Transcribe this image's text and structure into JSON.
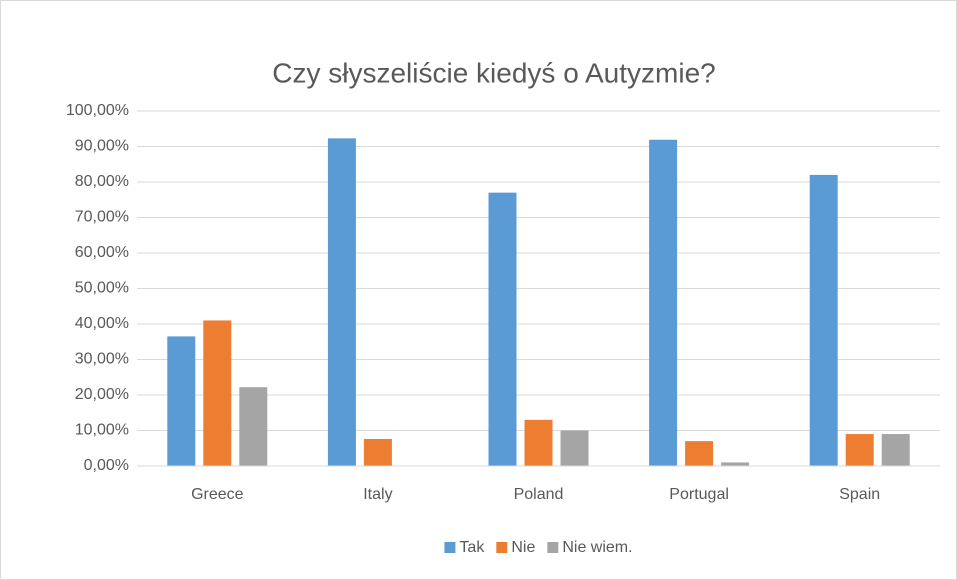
{
  "chart_data": {
    "type": "bar",
    "title": "Czy słyszeliście kiedyś o Autyzmie?",
    "categories": [
      "Greece",
      "Italy",
      "Poland",
      "Portugal",
      "Spain"
    ],
    "series": [
      {
        "name": "Tak",
        "color": "#5b9bd5",
        "values": [
          36.5,
          92.3,
          77,
          91.9,
          82
        ]
      },
      {
        "name": "Nie",
        "color": "#ed7d31",
        "values": [
          41,
          7.6,
          13,
          7,
          9
        ]
      },
      {
        "name": "Nie wiem.",
        "color": "#a5a5a5",
        "values": [
          22.2,
          0,
          10,
          1,
          9
        ]
      }
    ],
    "ylim": [
      0,
      100
    ],
    "yticks": [
      {
        "value": 0,
        "label": "0,00%"
      },
      {
        "value": 10,
        "label": "10,00%"
      },
      {
        "value": 20,
        "label": "20,00%"
      },
      {
        "value": 30,
        "label": "30,00%"
      },
      {
        "value": 40,
        "label": "40,00%"
      },
      {
        "value": 50,
        "label": "50,00%"
      },
      {
        "value": 60,
        "label": "60,00%"
      },
      {
        "value": 70,
        "label": "70,00%"
      },
      {
        "value": 80,
        "label": "80,00%"
      },
      {
        "value": 90,
        "label": "90,00%"
      },
      {
        "value": 100,
        "label": "100,00%"
      }
    ],
    "grid": true,
    "legend": "bottom"
  }
}
